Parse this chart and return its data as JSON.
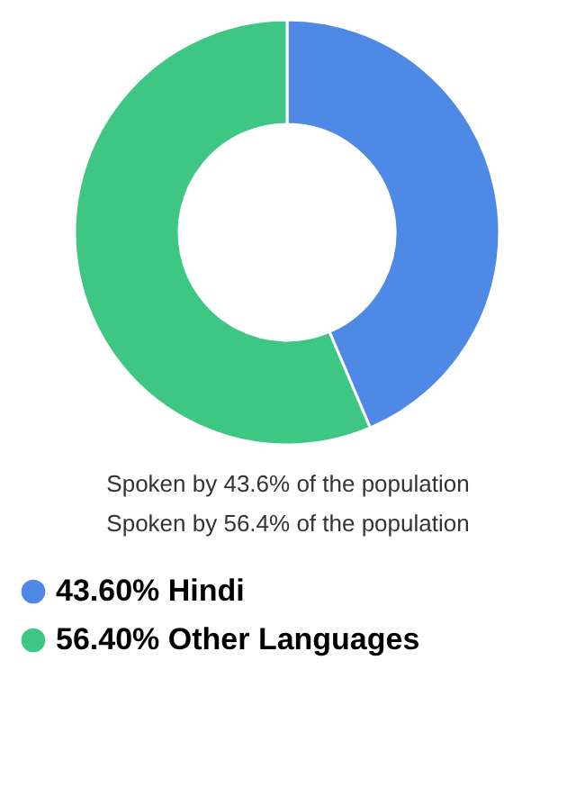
{
  "chart_data": {
    "type": "donut",
    "categories": [
      "43.60% Hindi",
      "56.40% Other Languages"
    ],
    "values": [
      43.6,
      56.4
    ],
    "colors": [
      "#4e89e5",
      "#3ec683"
    ],
    "legend": "bottom",
    "annotations": [
      "Spoken by 43.6% of the population",
      "Spoken by 56.4% of the population"
    ]
  }
}
